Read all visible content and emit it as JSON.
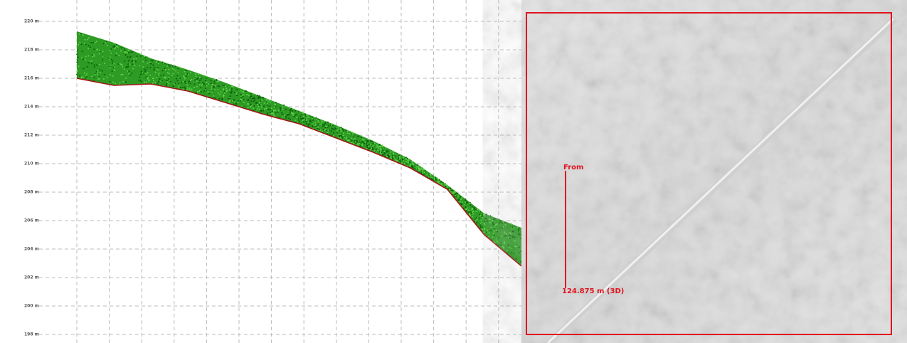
{
  "profile": {
    "yticks": [
      {
        "value": 220,
        "label": "220 m"
      },
      {
        "value": 218,
        "label": "218 m"
      },
      {
        "value": 216,
        "label": "216 m"
      },
      {
        "value": 214,
        "label": "214 m"
      },
      {
        "value": 212,
        "label": "212 m"
      },
      {
        "value": 210,
        "label": "210 m"
      },
      {
        "value": 208,
        "label": "208 m"
      },
      {
        "value": 206,
        "label": "206 m"
      },
      {
        "value": 204,
        "label": "204 m"
      },
      {
        "value": 202,
        "label": "202 m"
      },
      {
        "value": 200,
        "label": "200 m"
      },
      {
        "value": 198,
        "label": "198 m"
      }
    ],
    "ylim": [
      198,
      220
    ],
    "ground": [
      216.0,
      215.5,
      215.6,
      215.1,
      214.3,
      213.5,
      212.8,
      211.8,
      210.8,
      209.7,
      208.2,
      205.0,
      202.8
    ],
    "top": [
      219.3,
      218.5,
      217.4,
      216.6,
      215.7,
      214.7,
      213.7,
      212.7,
      211.6,
      210.3,
      208.5,
      206.5,
      205.5
    ]
  },
  "map": {
    "from_label": "From",
    "distance_label": "124.875 m (3D)"
  }
}
